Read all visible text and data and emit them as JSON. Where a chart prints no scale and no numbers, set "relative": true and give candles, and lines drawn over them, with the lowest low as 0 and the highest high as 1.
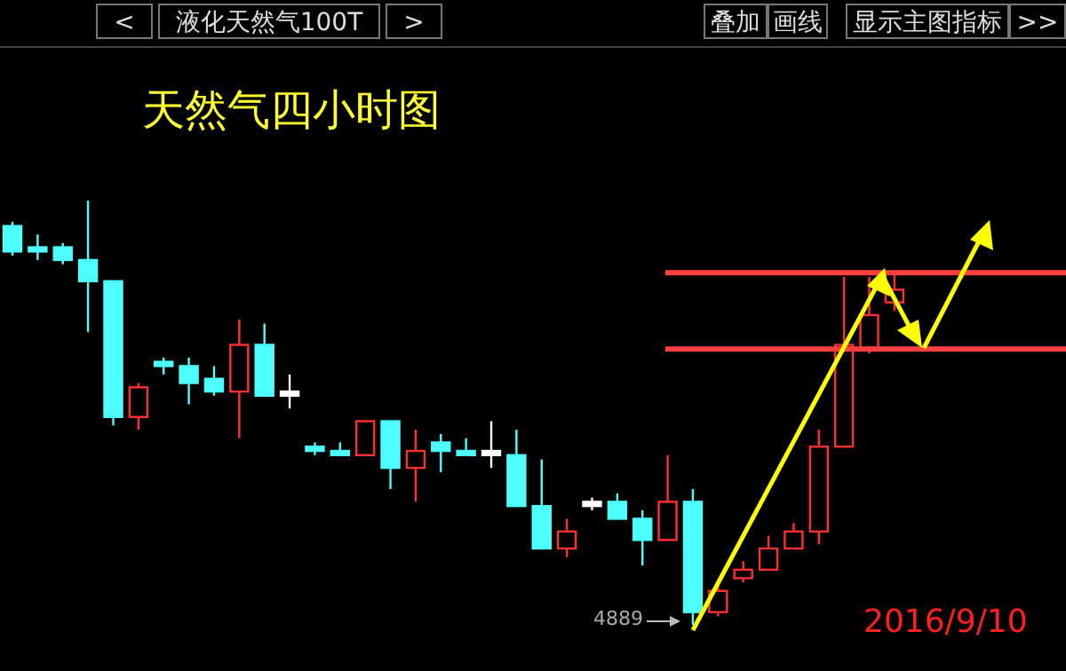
{
  "chart_data": {
    "type": "candlestick",
    "title": "天然气四小时图",
    "subtitle": "液化天然气100T",
    "relative": true,
    "categories": [
      null,
      null,
      null,
      null,
      null,
      null,
      null,
      null,
      null,
      null,
      null,
      null,
      null,
      null,
      null,
      null,
      null,
      null,
      null,
      null,
      null,
      null,
      null,
      null,
      null,
      null,
      null,
      null,
      null,
      null,
      null,
      null,
      null,
      null,
      null,
      null
    ],
    "ohlc": [
      [
        0.94,
        0.95,
        0.87,
        0.88
      ],
      [
        0.89,
        0.92,
        0.86,
        0.88
      ],
      [
        0.89,
        0.9,
        0.85,
        0.86
      ],
      [
        0.86,
        1,
        0.69,
        0.81
      ],
      [
        0.81,
        0.81,
        0.47,
        0.49
      ],
      [
        0.49,
        0.57,
        0.46,
        0.56
      ],
      [
        0.62,
        0.63,
        0.59,
        0.61
      ],
      [
        0.61,
        0.63,
        0.52,
        0.57
      ],
      [
        0.58,
        0.61,
        0.54,
        0.55
      ],
      [
        0.55,
        0.72,
        0.44,
        0.66
      ],
      [
        0.66,
        0.71,
        0.54,
        0.54
      ],
      [
        0.55,
        0.59,
        0.51,
        0.54
      ],
      [
        0.42,
        0.43,
        0.4,
        0.41
      ],
      [
        0.41,
        0.43,
        0.4,
        0.4
      ],
      [
        0.4,
        0.48,
        0.4,
        0.48
      ],
      [
        0.48,
        0.48,
        0.32,
        0.37
      ],
      [
        0.37,
        0.46,
        0.29,
        0.41
      ],
      [
        0.43,
        0.45,
        0.36,
        0.41
      ],
      [
        0.41,
        0.44,
        0.4,
        0.4
      ],
      [
        0.41,
        0.48,
        0.37,
        0.4
      ],
      [
        0.4,
        0.46,
        0.28,
        0.28
      ],
      [
        0.28,
        0.39,
        0.18,
        0.18
      ],
      [
        0.18,
        0.25,
        0.16,
        0.22
      ],
      [
        0.29,
        0.3,
        0.27,
        0.28
      ],
      [
        0.29,
        0.31,
        0.25,
        0.25
      ],
      [
        0.25,
        0.27,
        0.14,
        0.2
      ],
      [
        0.2,
        0.4,
        0.2,
        0.29
      ],
      [
        0.29,
        0.32,
        0,
        0.03
      ],
      [
        0.03,
        0.1,
        0.02,
        0.08
      ],
      [
        0.11,
        0.15,
        0.1,
        0.13
      ],
      [
        0.13,
        0.21,
        0.13,
        0.18
      ],
      [
        0.18,
        0.24,
        0.18,
        0.22
      ],
      [
        0.22,
        0.46,
        0.19,
        0.42
      ],
      [
        0.42,
        0.82,
        0.42,
        0.66
      ],
      [
        0.65,
        0.82,
        0.64,
        0.73
      ],
      [
        0.76,
        0.83,
        0.74,
        0.79
      ]
    ],
    "colors": [
      "#4dffff",
      "#4dffff",
      "#4dffff",
      "#4dffff",
      "#4dffff",
      "#ff3030",
      "#4dffff",
      "#4dffff",
      "#4dffff",
      "#ff3030",
      "#4dffff",
      "#ffffff",
      "#4dffff",
      "#4dffff",
      "#ff3030",
      "#4dffff",
      "#ff3030",
      "#4dffff",
      "#4dffff",
      "#ffffff",
      "#4dffff",
      "#4dffff",
      "#ff3030",
      "#ffffff",
      "#4dffff",
      "#4dffff",
      "#ff3030",
      "#4dffff",
      "#ff3030",
      "#ff3030",
      "#ff3030",
      "#ff3030",
      "#ff3030",
      "#ff3030",
      "#ff3030",
      "#ff3030"
    ],
    "ref_lines": [
      {
        "axis": "y",
        "value": 0.83,
        "color": "#ff4040"
      },
      {
        "axis": "y",
        "value": 0.65,
        "color": "#ff4040"
      }
    ],
    "annotations": [
      "<",
      ">",
      "叠加",
      "画线",
      "显示主图指标",
      ">>",
      "4889",
      "2016/9/10"
    ]
  }
}
